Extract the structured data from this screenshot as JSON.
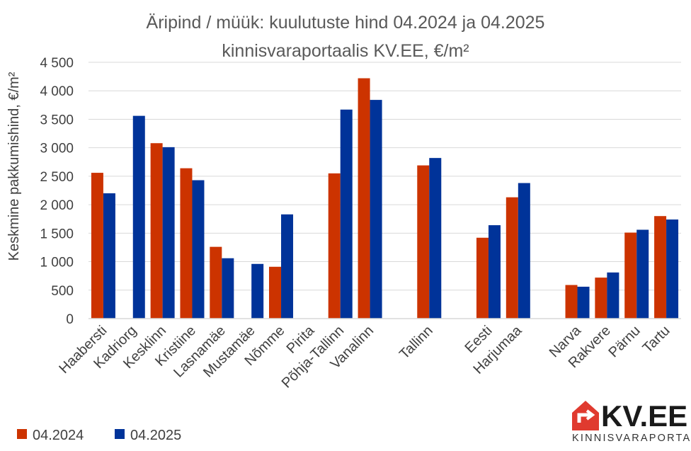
{
  "colors": {
    "s2024": "#CC3300",
    "s2025": "#003399",
    "grid": "#D9D9D9",
    "logo_red": "#E03A2F"
  },
  "chart_data": {
    "type": "bar",
    "title": "Äripind / müük: kuulutuste hind 04.2024  ja 04.2025",
    "subtitle": "kinnisvaraportaalis KV.EE, €/m²",
    "xlabel": "",
    "ylabel": "Keskmine pakkumishind, €/m²",
    "ylim": [
      0,
      4500
    ],
    "yticks": [
      0,
      500,
      1000,
      1500,
      2000,
      2500,
      3000,
      3500,
      4000,
      4500
    ],
    "ytick_labels": [
      "0",
      "500",
      "1 000",
      "1 500",
      "2 000",
      "2 500",
      "3 000",
      "3 500",
      "4 000",
      "4 500"
    ],
    "grid": true,
    "legend_position": "bottom-left",
    "categories": [
      "Haabersti",
      "Kadriorg",
      "Kesklinn",
      "Kristiine",
      "Lasnamäe",
      "Mustamäe",
      "Nõmme",
      "Pirita",
      "Põhja-Tallinn",
      "Vanalinn",
      "",
      "Tallinn",
      "",
      "Eesti",
      "Harjumaa",
      "",
      "Narva",
      "Rakvere",
      "Pärnu",
      "Tartu"
    ],
    "series": [
      {
        "name": "04.2024",
        "values": [
          2560,
          null,
          3080,
          2640,
          1260,
          null,
          910,
          null,
          2550,
          4220,
          null,
          2690,
          null,
          1420,
          2130,
          null,
          590,
          720,
          1510,
          1800
        ]
      },
      {
        "name": "04.2025",
        "values": [
          2200,
          3560,
          3010,
          2430,
          1060,
          960,
          1830,
          null,
          3670,
          3840,
          null,
          2820,
          null,
          1640,
          2380,
          null,
          560,
          810,
          1560,
          1740
        ]
      }
    ]
  },
  "logo": {
    "brand": "KV.EE",
    "tagline": "KINNISVARAPORTAAL"
  }
}
